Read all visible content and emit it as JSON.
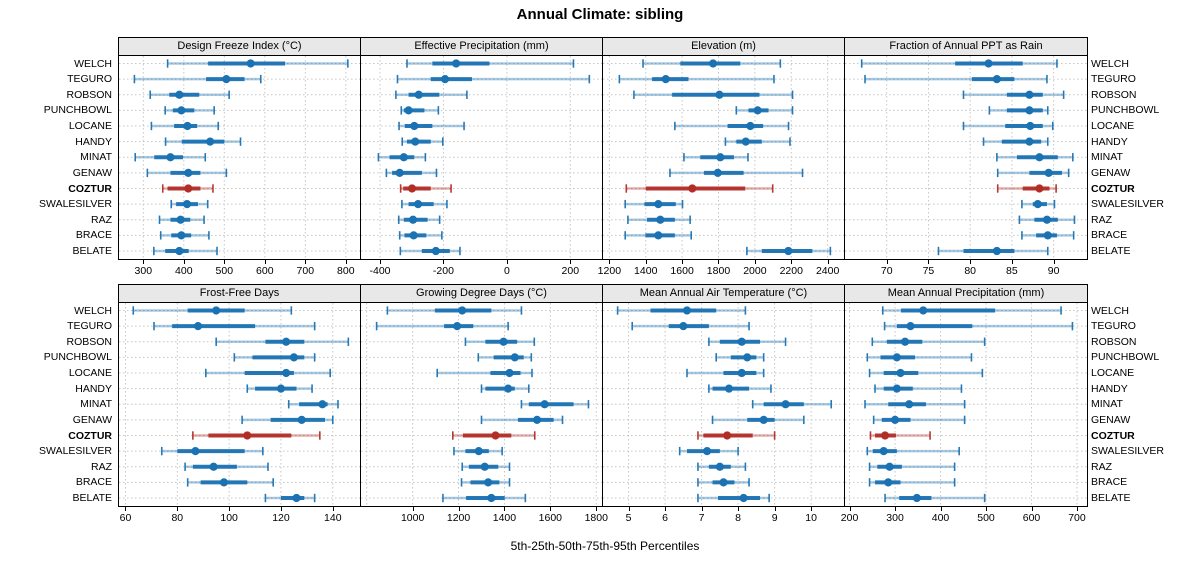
{
  "title": "Annual Climate: sibling",
  "caption": "5th-25th-50th-75th-95th Percentiles",
  "colors": {
    "series_blue": "#1B72B2",
    "highlight_red": "#B22D26",
    "grid": "#C6C6C6",
    "header_bg": "#E8E8E8",
    "border": "#000000"
  },
  "chart_data": {
    "type": "dot-whisker-trellis",
    "layout_hint": "2 rows x 4 columns of panels; shared station category axis; dotted grid",
    "percentiles": [
      5,
      25,
      50,
      75,
      95
    ],
    "stations": [
      "WELCH",
      "TEGURO",
      "ROBSON",
      "PUNCHBOWL",
      "LOCANE",
      "HANDY",
      "MINAT",
      "GENAW",
      "COZTUR",
      "SWALESILVER",
      "RAZ",
      "BRACE",
      "BELATE"
    ],
    "highlighted_station": "COZTUR",
    "panels": [
      {
        "title": "Design Freeze Index (°C)",
        "xlim": [
          240,
          835
        ],
        "ticks": [
          300,
          400,
          500,
          600,
          700,
          800
        ],
        "values": {
          "WELCH": [
            360,
            460,
            565,
            650,
            805
          ],
          "TEGURO": [
            278,
            455,
            505,
            550,
            590
          ],
          "ROBSON": [
            317,
            364,
            389,
            438,
            512
          ],
          "PUNCHBOWL": [
            354,
            373,
            394,
            426,
            475
          ],
          "LOCANE": [
            320,
            376,
            409,
            433,
            485
          ],
          "HANDY": [
            355,
            395,
            465,
            500,
            540
          ],
          "MINAT": [
            280,
            327,
            367,
            398,
            453
          ],
          "GENAW": [
            310,
            367,
            411,
            441,
            505
          ],
          "COZTUR": [
            348,
            360,
            411,
            441,
            472
          ],
          "SWALESILVER": [
            369,
            381,
            408,
            435,
            459
          ],
          "RAZ": [
            340,
            367,
            392,
            416,
            450
          ],
          "BRACE": [
            343,
            369,
            394,
            418,
            462
          ],
          "BELATE": [
            326,
            354,
            389,
            412,
            482
          ]
        }
      },
      {
        "title": "Effective Precipitation (mm)",
        "xlim": [
          -460,
          300
        ],
        "ticks": [
          -400,
          -200,
          0,
          200
        ],
        "values": {
          "WELCH": [
            -315,
            -235,
            -160,
            -55,
            210
          ],
          "TEGURO": [
            -345,
            -240,
            -195,
            -110,
            260
          ],
          "ROBSON": [
            -350,
            -310,
            -278,
            -213,
            -126
          ],
          "PUNCHBOWL": [
            -333,
            -325,
            -310,
            -260,
            -216
          ],
          "LOCANE": [
            -340,
            -322,
            -292,
            -235,
            -135
          ],
          "HANDY": [
            -330,
            -315,
            -289,
            -240,
            -202
          ],
          "MINAT": [
            -405,
            -370,
            -325,
            -292,
            -257
          ],
          "GENAW": [
            -380,
            -362,
            -338,
            -268,
            -222
          ],
          "COZTUR": [
            -335,
            -327,
            -299,
            -240,
            -176
          ],
          "SWALESILVER": [
            -331,
            -310,
            -280,
            -231,
            -189
          ],
          "RAZ": [
            -341,
            -325,
            -296,
            -250,
            -212
          ],
          "BRACE": [
            -338,
            -323,
            -294,
            -254,
            -205
          ],
          "BELATE": [
            -336,
            -268,
            -224,
            -180,
            -148
          ]
        }
      },
      {
        "title": "Elevation (m)",
        "xlim": [
          1165,
          2490
        ],
        "ticks": [
          1200,
          1400,
          1600,
          1800,
          2000,
          2200,
          2400
        ],
        "values": {
          "WELCH": [
            1385,
            1590,
            1770,
            1920,
            2140
          ],
          "TEGURO": [
            1255,
            1435,
            1510,
            1635,
            2105
          ],
          "ROBSON": [
            1335,
            1545,
            1805,
            2025,
            2207
          ],
          "PUNCHBOWL": [
            1898,
            1965,
            2015,
            2075,
            2207
          ],
          "LOCANE": [
            1560,
            1850,
            1975,
            2045,
            2185
          ],
          "HANDY": [
            1838,
            1898,
            1950,
            2038,
            2193
          ],
          "MINAT": [
            1610,
            1700,
            1810,
            1885,
            1962
          ],
          "GENAW": [
            1533,
            1720,
            1796,
            1938,
            2262
          ],
          "COZTUR": [
            1293,
            1400,
            1656,
            1947,
            2098
          ],
          "SWALESILVER": [
            1287,
            1393,
            1469,
            1565,
            1602
          ],
          "RAZ": [
            1302,
            1407,
            1480,
            1560,
            1644
          ],
          "BRACE": [
            1287,
            1398,
            1469,
            1560,
            1650
          ],
          "BELATE": [
            1956,
            2038,
            2184,
            2316,
            2415
          ]
        }
      },
      {
        "title": "Fraction of Annual PPT as Rain",
        "xlim": [
          65,
          94
        ],
        "ticks": [
          70,
          75,
          80,
          85,
          90
        ],
        "values": {
          "WELCH": [
            67,
            78.2,
            82.2,
            86.3,
            90.4
          ],
          "TEGURO": [
            67.4,
            80.2,
            83.2,
            85.3,
            89.2
          ],
          "ROBSON": [
            79.2,
            84.4,
            87.1,
            88.7,
            91.2
          ],
          "PUNCHBOWL": [
            82.3,
            84.4,
            87.1,
            88.7,
            89.3
          ],
          "LOCANE": [
            79.2,
            84.2,
            87.2,
            88.7,
            89.9
          ],
          "HANDY": [
            81.6,
            83.8,
            87.1,
            88.5,
            89.3
          ],
          "MINAT": [
            83.2,
            85.6,
            88.3,
            90.5,
            92.3
          ],
          "GENAW": [
            83.3,
            87.1,
            89.4,
            91.0,
            91.8
          ],
          "COZTUR": [
            83.3,
            86.3,
            88.3,
            89.5,
            90.3
          ],
          "SWALESILVER": [
            86.2,
            87.5,
            88.1,
            89.2,
            90.1
          ],
          "RAZ": [
            85.9,
            87.7,
            89.2,
            90.5,
            92.5
          ],
          "BRACE": [
            86.2,
            87.9,
            89.3,
            90.4,
            92.4
          ],
          "BELATE": [
            76.2,
            79.2,
            83.2,
            85.3,
            89.3
          ]
        }
      },
      {
        "title": "Frost-Free Days",
        "xlim": [
          57.5,
          150.5
        ],
        "ticks": [
          60,
          80,
          100,
          120,
          140
        ],
        "values": {
          "WELCH": [
            63,
            84,
            95,
            106,
            124
          ],
          "TEGURO": [
            71,
            78,
            88,
            110,
            133
          ],
          "ROBSON": [
            95,
            114,
            122,
            129,
            146
          ],
          "PUNCHBOWL": [
            102,
            109,
            125,
            129,
            133
          ],
          "LOCANE": [
            91,
            106,
            122,
            125,
            139
          ],
          "HANDY": [
            107,
            110,
            120,
            126,
            132
          ],
          "MINAT": [
            123,
            127,
            136,
            138,
            142
          ],
          "GENAW": [
            105,
            116,
            128,
            137,
            140
          ],
          "COZTUR": [
            86,
            92,
            107,
            124,
            135
          ],
          "SWALESILVER": [
            74,
            80,
            87,
            106,
            113
          ],
          "RAZ": [
            83,
            86,
            94,
            103,
            115
          ],
          "BRACE": [
            84,
            89,
            98,
            107,
            117
          ],
          "BELATE": [
            114,
            120,
            126,
            129,
            133
          ]
        }
      },
      {
        "title": "Growing Degree Days (°C)",
        "xlim": [
          775,
          1825
        ],
        "ticks": [
          1000,
          1200,
          1400,
          1600,
          1800
        ],
        "extra_grid": [
          800
        ],
        "values": {
          "WELCH": [
            890,
            1097,
            1216,
            1343,
            1474
          ],
          "TEGURO": [
            843,
            1137,
            1194,
            1264,
            1416
          ],
          "ROBSON": [
            1230,
            1317,
            1396,
            1455,
            1530
          ],
          "PUNCHBOWL": [
            1286,
            1353,
            1445,
            1484,
            1517
          ],
          "LOCANE": [
            1107,
            1339,
            1422,
            1470,
            1520
          ],
          "HANDY": [
            1300,
            1317,
            1416,
            1445,
            1506
          ],
          "MINAT": [
            1474,
            1506,
            1575,
            1701,
            1766
          ],
          "GENAW": [
            1300,
            1459,
            1542,
            1614,
            1653
          ],
          "COZTUR": [
            1175,
            1219,
            1361,
            1430,
            1532
          ],
          "SWALESILVER": [
            1180,
            1230,
            1288,
            1332,
            1390
          ],
          "RAZ": [
            1216,
            1245,
            1314,
            1373,
            1422
          ],
          "BRACE": [
            1213,
            1252,
            1329,
            1378,
            1422
          ],
          "BELATE": [
            1132,
            1233,
            1343,
            1401,
            1491
          ]
        }
      },
      {
        "title": "Mean Annual Air Temperature (°C)",
        "xlim": [
          4.3,
          10.9
        ],
        "ticks": [
          5,
          6,
          7,
          8,
          9,
          10
        ],
        "values": {
          "WELCH": [
            4.7,
            5.6,
            6.6,
            7.4,
            8.2
          ],
          "TEGURO": [
            5.1,
            6.1,
            6.5,
            7.2,
            8.3
          ],
          "ROBSON": [
            7.2,
            7.5,
            8.1,
            8.6,
            9.3
          ],
          "PUNCHBOWL": [
            7.4,
            7.8,
            8.25,
            8.5,
            8.7
          ],
          "LOCANE": [
            6.6,
            7.6,
            8.1,
            8.5,
            8.7
          ],
          "HANDY": [
            7.2,
            7.3,
            7.75,
            8.3,
            8.9
          ],
          "MINAT": [
            8.4,
            8.7,
            9.3,
            9.8,
            10.55
          ],
          "GENAW": [
            7.3,
            8.25,
            8.7,
            9.0,
            9.8
          ],
          "COZTUR": [
            6.9,
            7.05,
            7.7,
            8.4,
            9.0
          ],
          "SWALESILVER": [
            6.4,
            6.6,
            7.15,
            7.5,
            8.0
          ],
          "RAZ": [
            6.9,
            7.2,
            7.5,
            7.8,
            8.2
          ],
          "BRACE": [
            6.9,
            7.3,
            7.6,
            7.9,
            8.3
          ],
          "BELATE": [
            6.9,
            7.45,
            8.15,
            8.6,
            8.85
          ]
        }
      },
      {
        "title": "Mean Annual Precipitation (mm)",
        "xlim": [
          190,
          722
        ],
        "ticks": [
          200,
          300,
          400,
          500,
          600,
          700
        ],
        "values": {
          "WELCH": [
            273,
            313,
            362,
            520,
            665
          ],
          "TEGURO": [
            277,
            304,
            334,
            470,
            690
          ],
          "ROBSON": [
            250,
            282,
            322,
            360,
            497
          ],
          "PUNCHBOWL": [
            239,
            268,
            304,
            344,
            468
          ],
          "LOCANE": [
            244,
            275,
            312,
            351,
            492
          ],
          "HANDY": [
            256,
            275,
            304,
            339,
            446
          ],
          "MINAT": [
            234,
            285,
            331,
            368,
            453
          ],
          "GENAW": [
            253,
            271,
            300,
            334,
            453
          ],
          "COZTUR": [
            246,
            256,
            278,
            302,
            377
          ],
          "SWALESILVER": [
            239,
            251,
            275,
            304,
            441
          ],
          "RAZ": [
            244,
            261,
            288,
            315,
            431
          ],
          "BRACE": [
            244,
            256,
            285,
            312,
            431
          ],
          "BELATE": [
            278,
            309,
            348,
            380,
            497
          ]
        }
      }
    ]
  }
}
